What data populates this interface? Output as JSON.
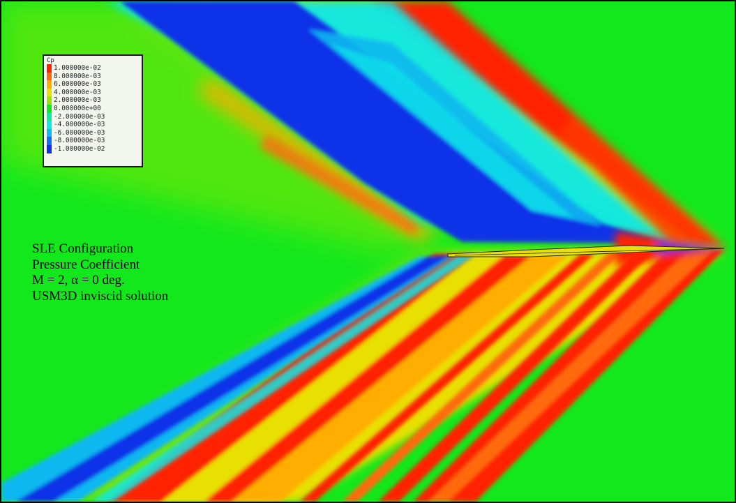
{
  "legend": {
    "title": "Cp",
    "entries": [
      {
        "label": "1.000000e-02",
        "color": "#ff2200"
      },
      {
        "label": "8.000000e-03",
        "color": "#ff6a10"
      },
      {
        "label": "6.000000e-03",
        "color": "#ffae00"
      },
      {
        "label": "4.000000e-03",
        "color": "#e8e000"
      },
      {
        "label": "2.000000e-03",
        "color": "#9ce400"
      },
      {
        "label": "0.000000e+00",
        "color": "#12e81c"
      },
      {
        "label": "-2.000000e-03",
        "color": "#12e8a0"
      },
      {
        "label": "-4.000000e-03",
        "color": "#10e8e8"
      },
      {
        "label": "-6.000000e-03",
        "color": "#10b8f0"
      },
      {
        "label": "-8.000000e-03",
        "color": "#1070f0"
      },
      {
        "label": "-1.000000e-02",
        "color": "#1030e8"
      }
    ]
  },
  "annotation": {
    "line1": "SLE Configuration",
    "line2": "Pressure Coefficient",
    "line3": "M = 2, α = 0 deg.",
    "line4": "USM3D inviscid solution"
  }
}
